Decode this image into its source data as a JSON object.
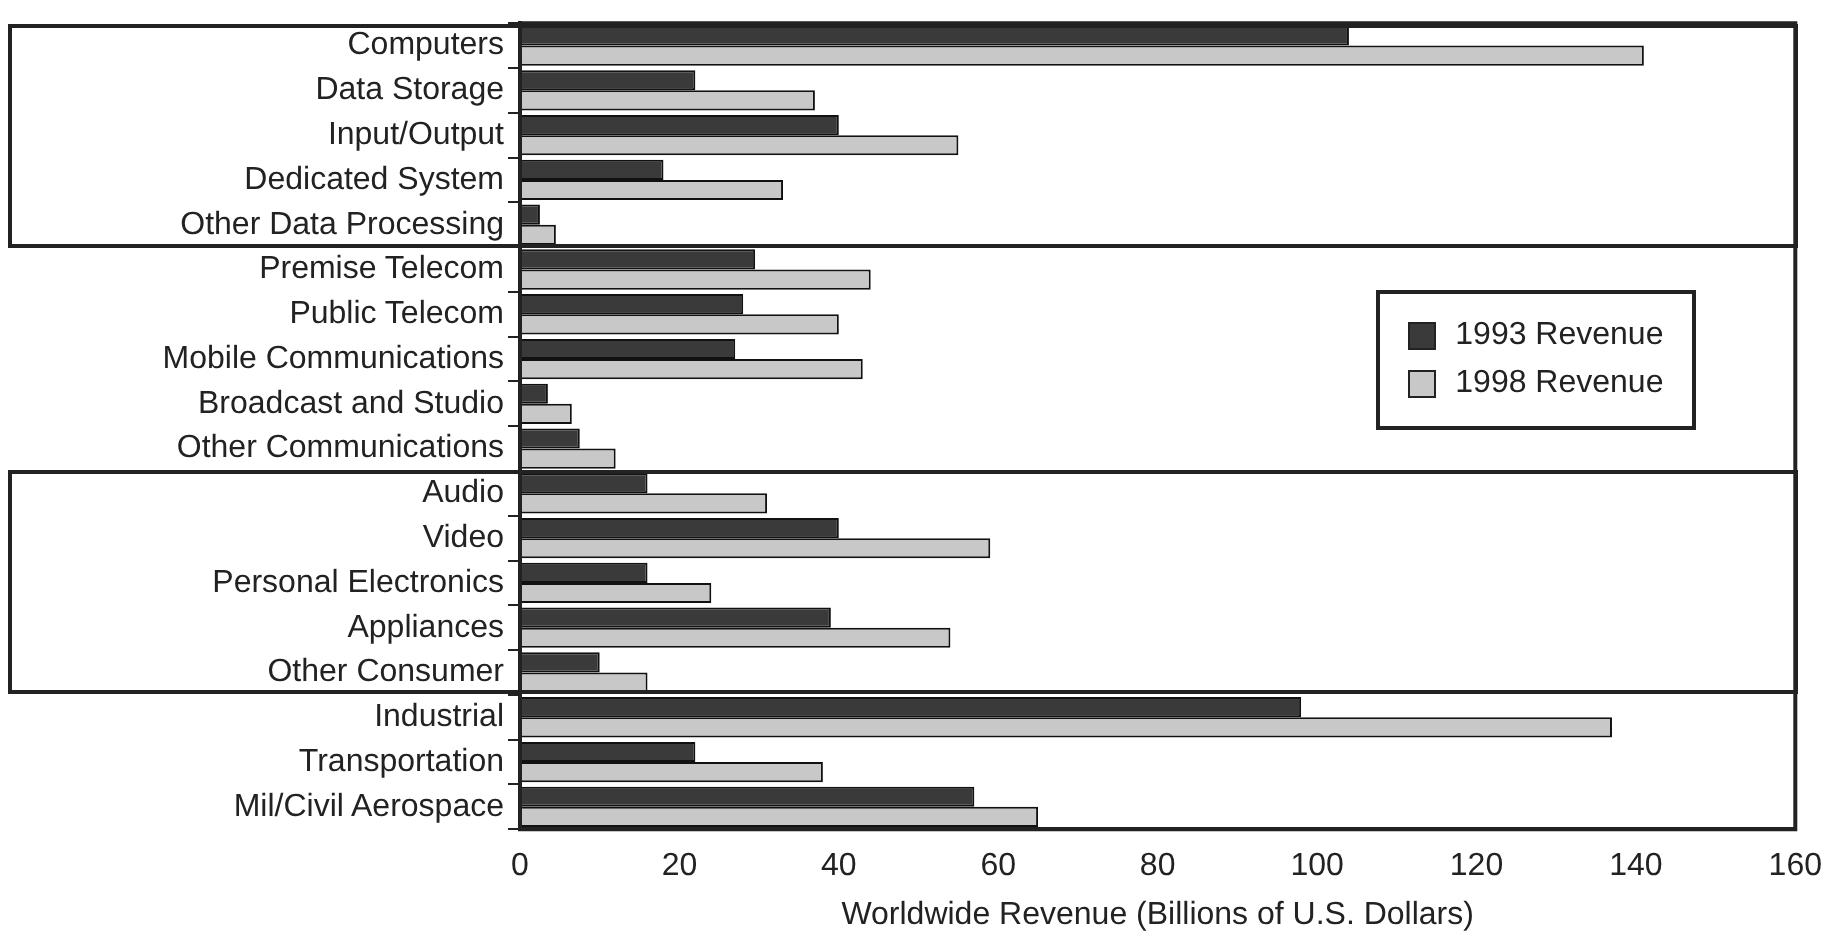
{
  "chart_data": {
    "type": "bar",
    "orientation": "horizontal",
    "xlabel": "Worldwide Revenue (Billions of U.S. Dollars)",
    "categories": [
      "Computers",
      "Data Storage",
      "Input/Output",
      "Dedicated System",
      "Other Data Processing",
      "Premise Telecom",
      "Public Telecom",
      "Mobile Communications",
      "Broadcast and Studio",
      "Other Communications",
      "Audio",
      "Video",
      "Personal Electronics",
      "Appliances",
      "Other Consumer",
      "Industrial",
      "Transportation",
      "Mil/Civil Aerospace"
    ],
    "series": [
      {
        "name": "1993 Revenue",
        "color": "#3a3a3a",
        "values": [
          104,
          22,
          40,
          18,
          2.5,
          29.5,
          28,
          27,
          3.5,
          7.5,
          16,
          40,
          16,
          39,
          10,
          98,
          22,
          57
        ]
      },
      {
        "name": "1998 Revenue",
        "color": "#c8c8c8",
        "values": [
          141,
          37,
          55,
          33,
          4.5,
          44,
          40,
          43,
          6.5,
          12,
          31,
          59,
          24,
          54,
          16,
          137,
          38,
          65
        ]
      }
    ],
    "xlim": [
      0,
      160
    ],
    "xticks": [
      0,
      20,
      40,
      60,
      80,
      100,
      120,
      140,
      160
    ],
    "grid": false,
    "legend": "right"
  }
}
